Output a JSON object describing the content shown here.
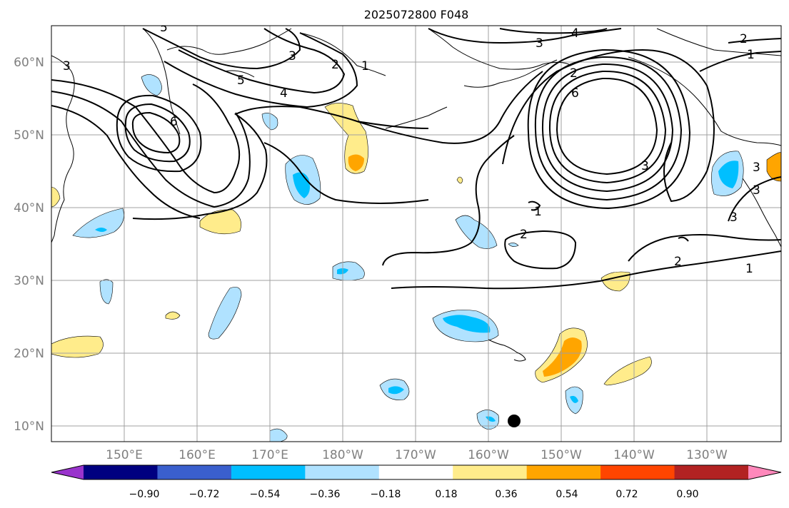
{
  "title": "2025072800 F048",
  "lon_labels": [
    "150°E",
    "160°E",
    "170°E",
    "180°W",
    "170°W",
    "160°W",
    "150°W",
    "140°W",
    "130°W"
  ],
  "lat_labels": [
    "60°N",
    "50°N",
    "40°N",
    "30°N",
    "20°N",
    "10°N"
  ],
  "colorbar": {
    "colors": [
      "#9933cc",
      "#000080",
      "#3a5fcd",
      "#00bfff",
      "#b0e2ff",
      "#ffffff",
      "#ffec8b",
      "#ffa500",
      "#ff4500",
      "#b22222",
      "#ff88bb"
    ],
    "tick_labels": [
      "−0.90",
      "−0.72",
      "−0.54",
      "−0.36",
      "−0.18",
      "0.18",
      "0.36",
      "0.54",
      "0.72",
      "0.90"
    ]
  },
  "contour_labels": [
    "5",
    "3",
    "4",
    "3",
    "1",
    "2",
    "1",
    "2",
    "5",
    "4",
    "2",
    "6",
    "6",
    "3",
    "1",
    "2",
    "3",
    "3",
    "2",
    "1",
    "3",
    "3"
  ],
  "marker": "black-dot"
}
